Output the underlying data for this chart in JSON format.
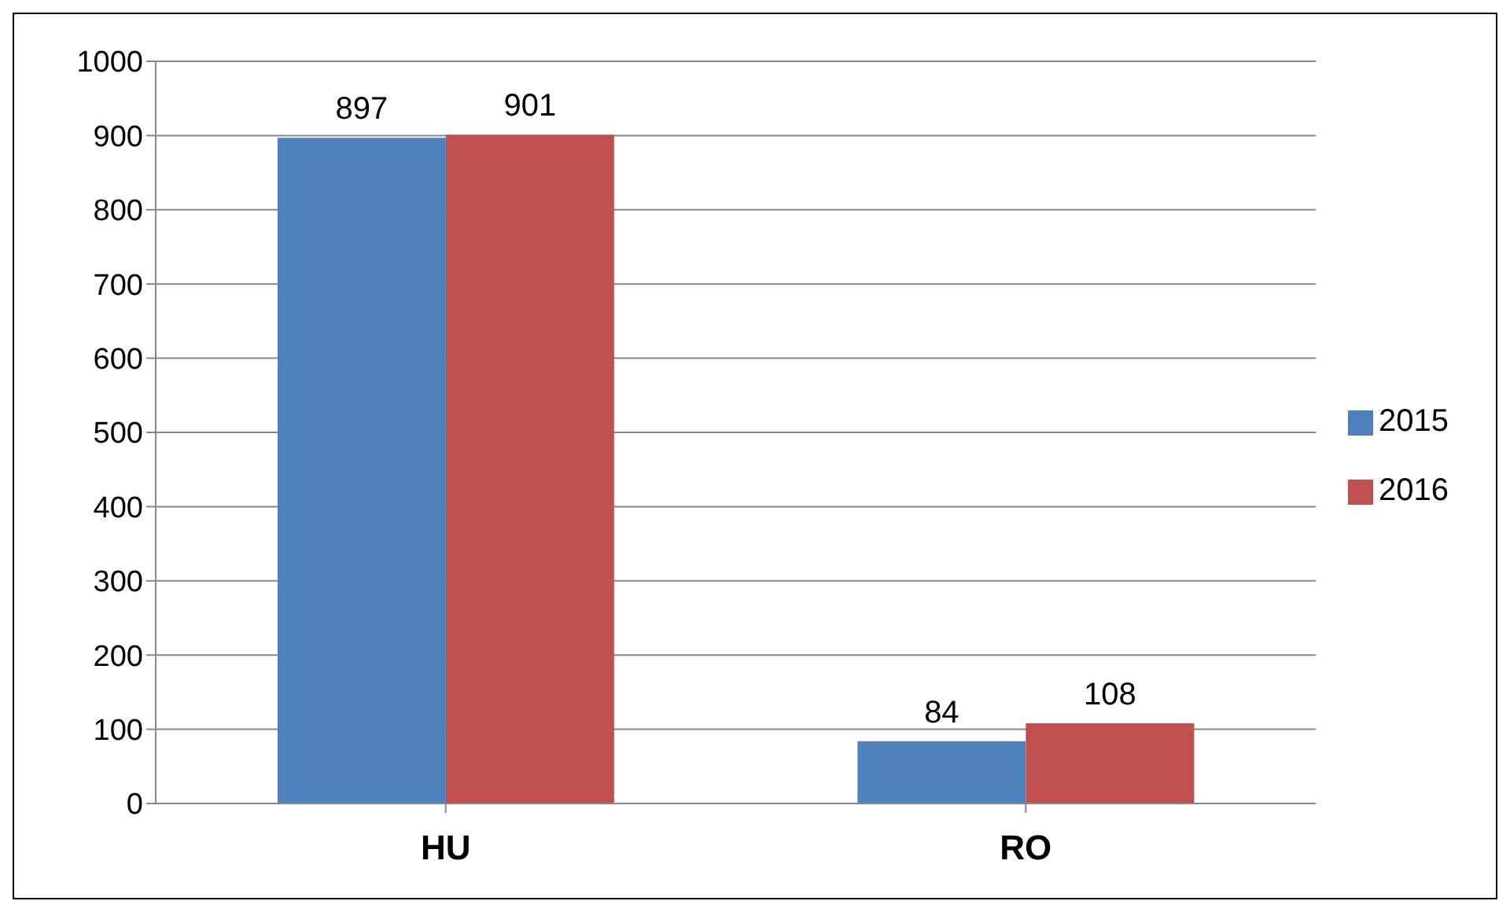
{
  "chart_data": {
    "type": "bar",
    "categories": [
      "HU",
      "RO"
    ],
    "series": [
      {
        "name": "2015",
        "color": "#4f81bd",
        "values": [
          897,
          84
        ]
      },
      {
        "name": "2016",
        "color": "#c0504d",
        "values": [
          901,
          108
        ]
      }
    ],
    "ylim": [
      0,
      1000
    ],
    "yticks": [
      0,
      100,
      200,
      300,
      400,
      500,
      600,
      700,
      800,
      900,
      1000
    ],
    "grid": "y",
    "legend": "right",
    "data_labels": true
  }
}
